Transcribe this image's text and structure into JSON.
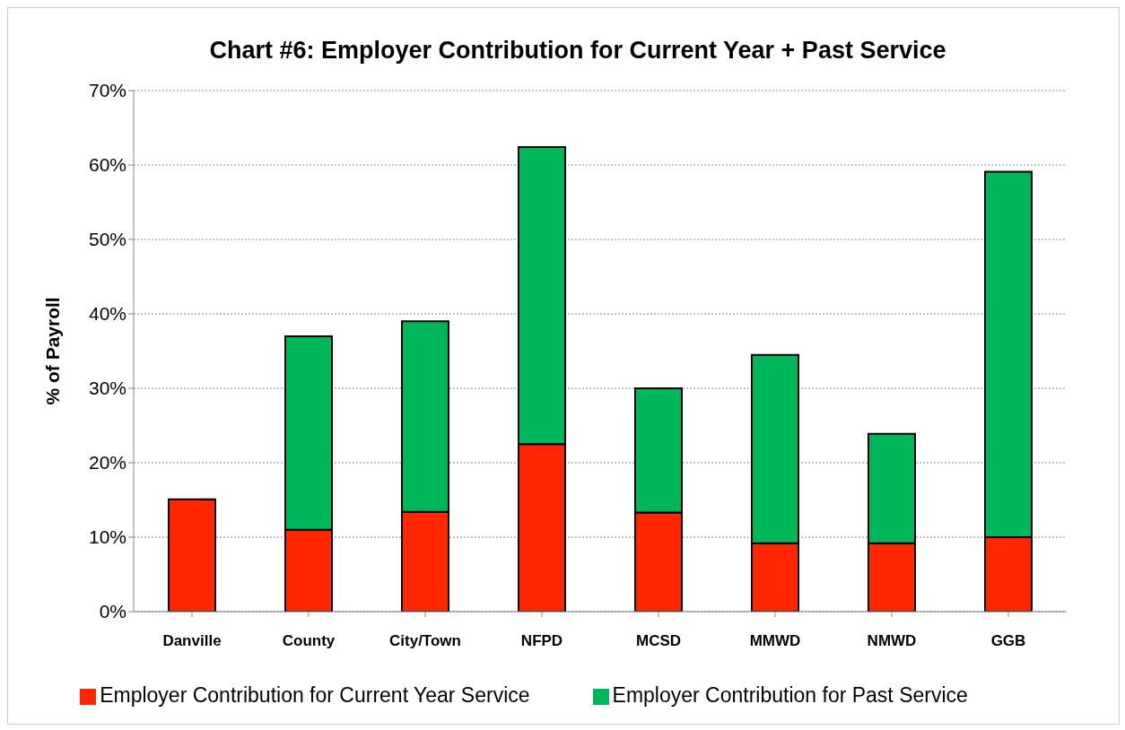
{
  "chart_data": {
    "type": "bar",
    "title": "Chart #6:  Employer Contribution for Current Year + Past Service",
    "ylabel": "% of Payroll",
    "categories": [
      "Danville",
      "County",
      "City/Town",
      "NFPD",
      "MCSD",
      "MMWD",
      "NMWD",
      "GGB"
    ],
    "stacked": true,
    "series": [
      {
        "name": "Employer Contribution for Current Year Service",
        "color": "#ff2600",
        "values": [
          15.1,
          11.0,
          13.4,
          22.5,
          13.3,
          9.2,
          9.2,
          10.0
        ]
      },
      {
        "name": "Employer Contribution for Past Service",
        "color": "#00b65a",
        "values": [
          null,
          26.0,
          25.6,
          39.9,
          16.7,
          25.3,
          14.7,
          49.1
        ]
      }
    ],
    "ylim": [
      0,
      70
    ],
    "yticks": [
      {
        "value": 0,
        "label": "0%"
      },
      {
        "value": 10,
        "label": "10%"
      },
      {
        "value": 20,
        "label": "20%"
      },
      {
        "value": 30,
        "label": "30%"
      },
      {
        "value": 40,
        "label": "40%"
      },
      {
        "value": 50,
        "label": "50%"
      },
      {
        "value": 60,
        "label": "60%"
      },
      {
        "value": 70,
        "label": "70%"
      }
    ],
    "grid": "y",
    "legend": "bottom"
  }
}
